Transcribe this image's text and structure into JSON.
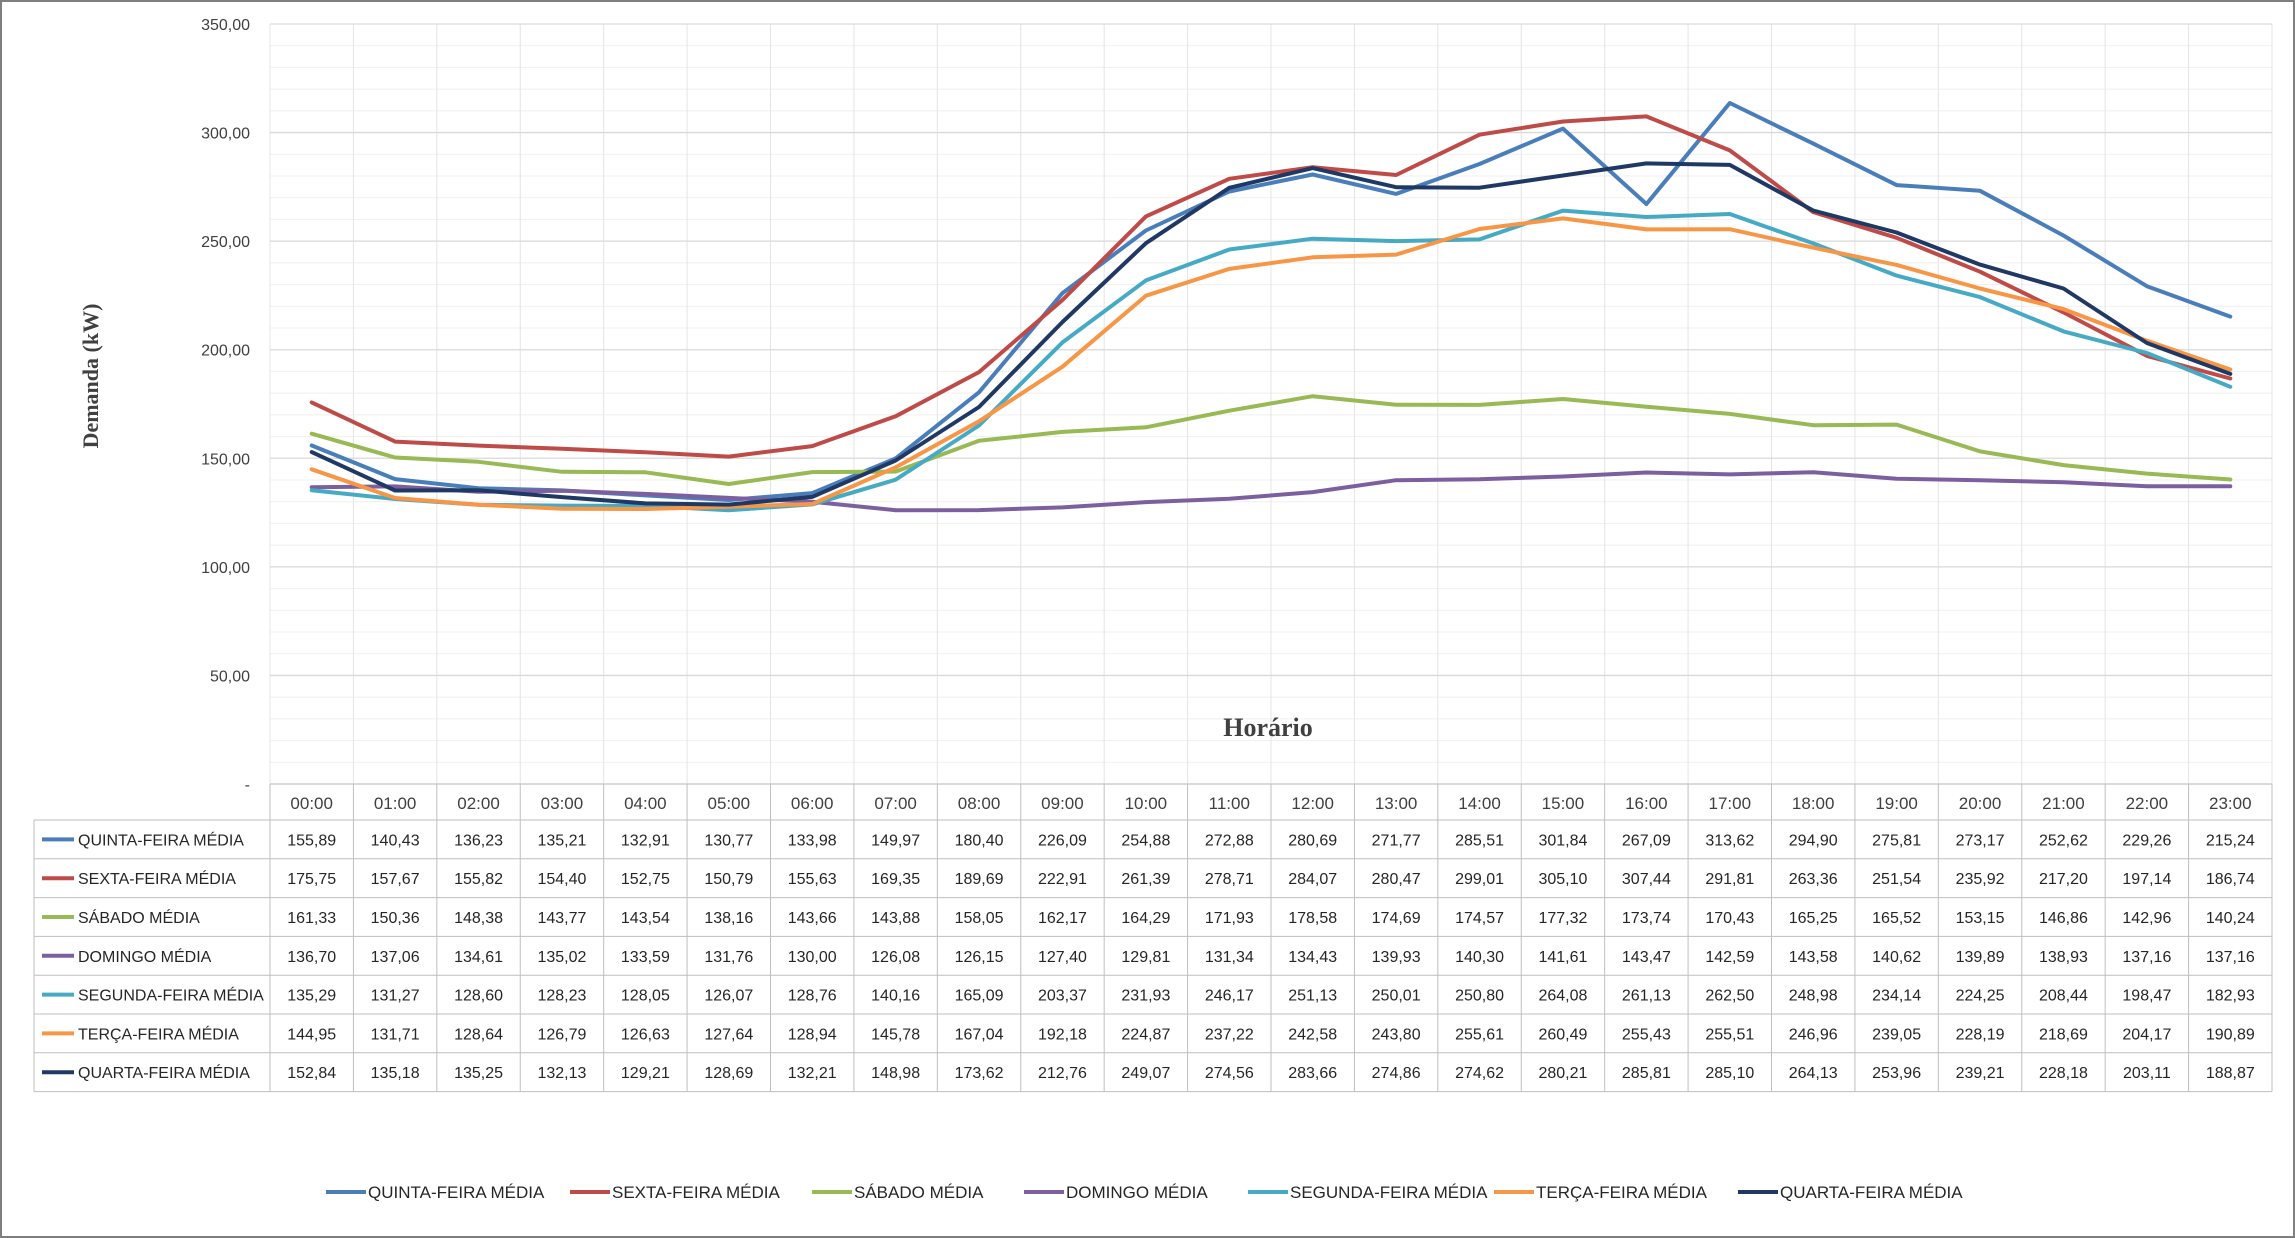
{
  "chart_data": {
    "type": "line",
    "title": "",
    "xlabel": "Horário",
    "ylabel": "Demanda (kW)",
    "ylim": [
      0,
      350
    ],
    "yticks": [
      "-",
      "50,00",
      "100,00",
      "150,00",
      "200,00",
      "250,00",
      "300,00",
      "350,00"
    ],
    "grid": true,
    "legend_position": "bottom",
    "categories": [
      "00:00",
      "01:00",
      "02:00",
      "03:00",
      "04:00",
      "05:00",
      "06:00",
      "07:00",
      "08:00",
      "09:00",
      "10:00",
      "11:00",
      "12:00",
      "13:00",
      "14:00",
      "15:00",
      "16:00",
      "17:00",
      "18:00",
      "19:00",
      "20:00",
      "21:00",
      "22:00",
      "23:00"
    ],
    "series": [
      {
        "name": "QUINTA-FEIRA   MÉDIA",
        "color": "#4a7ebb",
        "values": [
          155.89,
          140.43,
          136.23,
          135.21,
          132.91,
          130.77,
          133.98,
          149.97,
          180.4,
          226.09,
          254.88,
          272.88,
          280.69,
          271.77,
          285.51,
          301.84,
          267.09,
          313.62,
          294.9,
          275.81,
          273.17,
          252.62,
          229.26,
          215.24
        ],
        "labels": [
          "155,89",
          "140,43",
          "136,23",
          "135,21",
          "132,91",
          "130,77",
          "133,98",
          "149,97",
          "180,40",
          "226,09",
          "254,88",
          "272,88",
          "280,69",
          "271,77",
          "285,51",
          "301,84",
          "267,09",
          "313,62",
          "294,90",
          "275,81",
          "273,17",
          "252,62",
          "229,26",
          "215,24"
        ]
      },
      {
        "name": "SEXTA-FEIRA   MÉDIA",
        "color": "#be4b48",
        "values": [
          175.75,
          157.67,
          155.82,
          154.4,
          152.75,
          150.79,
          155.63,
          169.35,
          189.69,
          222.91,
          261.39,
          278.71,
          284.07,
          280.47,
          299.01,
          305.1,
          307.44,
          291.81,
          263.36,
          251.54,
          235.92,
          217.2,
          197.14,
          186.74
        ],
        "labels": [
          "175,75",
          "157,67",
          "155,82",
          "154,40",
          "152,75",
          "150,79",
          "155,63",
          "169,35",
          "189,69",
          "222,91",
          "261,39",
          "278,71",
          "284,07",
          "280,47",
          "299,01",
          "305,10",
          "307,44",
          "291,81",
          "263,36",
          "251,54",
          "235,92",
          "217,20",
          "197,14",
          "186,74"
        ]
      },
      {
        "name": "SÁBADO   MÉDIA",
        "color": "#98b954",
        "values": [
          161.33,
          150.36,
          148.38,
          143.77,
          143.54,
          138.16,
          143.66,
          143.88,
          158.05,
          162.17,
          164.29,
          171.93,
          178.58,
          174.69,
          174.57,
          177.32,
          173.74,
          170.43,
          165.25,
          165.52,
          153.15,
          146.86,
          142.96,
          140.24
        ],
        "labels": [
          "161,33",
          "150,36",
          "148,38",
          "143,77",
          "143,54",
          "138,16",
          "143,66",
          "143,88",
          "158,05",
          "162,17",
          "164,29",
          "171,93",
          "178,58",
          "174,69",
          "174,57",
          "177,32",
          "173,74",
          "170,43",
          "165,25",
          "165,52",
          "153,15",
          "146,86",
          "142,96",
          "140,24"
        ]
      },
      {
        "name": "DOMINGO   MÉDIA",
        "color": "#7d5fa0",
        "values": [
          136.7,
          137.06,
          134.61,
          135.02,
          133.59,
          131.76,
          130.0,
          126.08,
          126.15,
          127.4,
          129.81,
          131.34,
          134.43,
          139.93,
          140.3,
          141.61,
          143.47,
          142.59,
          143.58,
          140.62,
          139.89,
          138.93,
          137.16,
          137.16
        ],
        "labels": [
          "136,70",
          "137,06",
          "134,61",
          "135,02",
          "133,59",
          "131,76",
          "130,00",
          "126,08",
          "126,15",
          "127,40",
          "129,81",
          "131,34",
          "134,43",
          "139,93",
          "140,30",
          "141,61",
          "143,47",
          "142,59",
          "143,58",
          "140,62",
          "139,89",
          "138,93",
          "137,16",
          "137,16"
        ]
      },
      {
        "name": "SEGUNDA-FEIRA   MÉDIA",
        "color": "#46aac5",
        "values": [
          135.29,
          131.27,
          128.6,
          128.23,
          128.05,
          126.07,
          128.76,
          140.16,
          165.09,
          203.37,
          231.93,
          246.17,
          251.13,
          250.01,
          250.8,
          264.08,
          261.13,
          262.5,
          248.98,
          234.14,
          224.25,
          208.44,
          198.47,
          182.93
        ],
        "labels": [
          "135,29",
          "131,27",
          "128,60",
          "128,23",
          "128,05",
          "126,07",
          "128,76",
          "140,16",
          "165,09",
          "203,37",
          "231,93",
          "246,17",
          "251,13",
          "250,01",
          "250,80",
          "264,08",
          "261,13",
          "262,50",
          "248,98",
          "234,14",
          "224,25",
          "208,44",
          "198,47",
          "182,93"
        ]
      },
      {
        "name": "TERÇA-FEIRA   MÉDIA",
        "color": "#f79646",
        "values": [
          144.95,
          131.71,
          128.64,
          126.79,
          126.63,
          127.64,
          128.94,
          145.78,
          167.04,
          192.18,
          224.87,
          237.22,
          242.58,
          243.8,
          255.61,
          260.49,
          255.43,
          255.51,
          246.96,
          239.05,
          228.19,
          218.69,
          204.17,
          190.89
        ],
        "labels": [
          "144,95",
          "131,71",
          "128,64",
          "126,79",
          "126,63",
          "127,64",
          "128,94",
          "145,78",
          "167,04",
          "192,18",
          "224,87",
          "237,22",
          "242,58",
          "243,80",
          "255,61",
          "260,49",
          "255,43",
          "255,51",
          "246,96",
          "239,05",
          "228,19",
          "218,69",
          "204,17",
          "190,89"
        ]
      },
      {
        "name": "QUARTA-FEIRA   MÉDIA",
        "color": "#1f3864",
        "values": [
          152.84,
          135.18,
          135.25,
          132.13,
          129.21,
          128.69,
          132.21,
          148.98,
          173.62,
          212.76,
          249.07,
          274.56,
          283.66,
          274.86,
          274.62,
          280.21,
          285.81,
          285.1,
          264.13,
          253.96,
          239.21,
          228.18,
          203.11,
          188.87
        ],
        "labels": [
          "152,84",
          "135,18",
          "135,25",
          "132,13",
          "129,21",
          "128,69",
          "132,21",
          "148,98",
          "173,62",
          "212,76",
          "249,07",
          "274,56",
          "283,66",
          "274,86",
          "274,62",
          "280,21",
          "285,81",
          "285,10",
          "264,13",
          "253,96",
          "239,21",
          "228,18",
          "203,11",
          "188,87"
        ]
      }
    ]
  }
}
